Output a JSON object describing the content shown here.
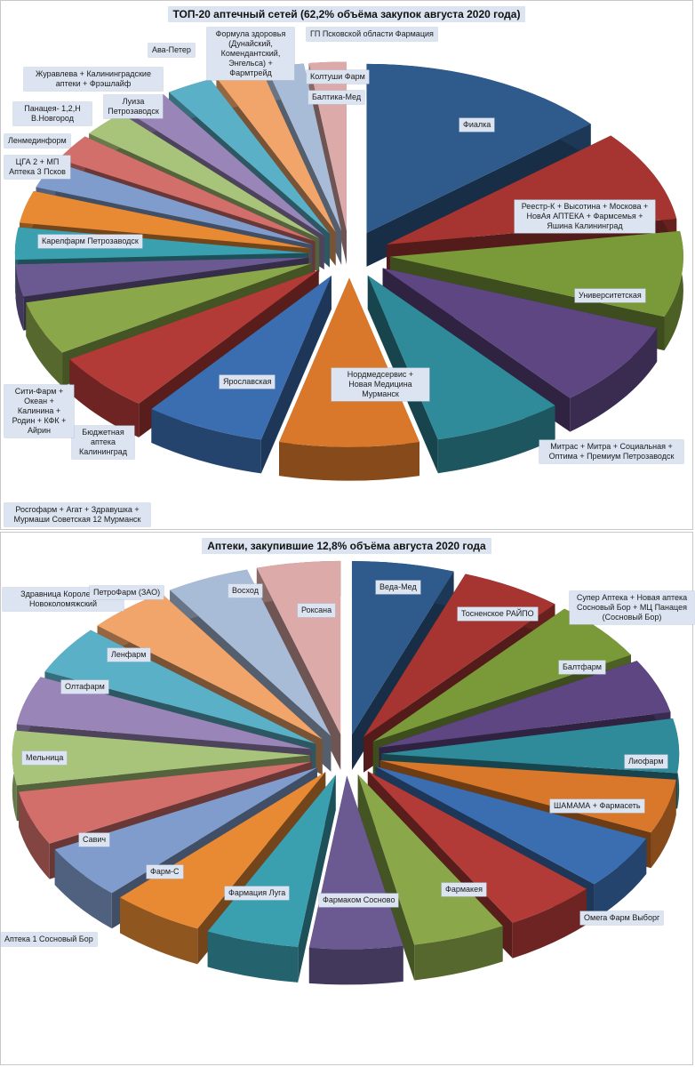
{
  "chart_data": [
    {
      "type": "pie",
      "title": "ТОП-20 аптечный сетей (62,2% объёма закупок августа 2020 года)",
      "slices": [
        {
          "label": "Фиалка",
          "value": 13.5,
          "color": "#2e5b8c"
        },
        {
          "label": "Реестр-К + Высотина + Москова + НовАя АПТЕКА + Фармсемья + Яшина Калининград",
          "value": 8.5,
          "color": "#a63532"
        },
        {
          "label": "Университетская",
          "value": 8.0,
          "color": "#7a9a3a"
        },
        {
          "label": "Митрас + Митра + Социальная + Оптима + Премиум Петрозаводск",
          "value": 8.0,
          "color": "#5e4682"
        },
        {
          "label": "Нордмедсервис + Новая Медицина Мурманск",
          "value": 7.0,
          "color": "#2f8a9a"
        },
        {
          "label": "Ярославская",
          "value": 7.5,
          "color": "#d9772a"
        },
        {
          "label": "Бюджетная аптека Калининград",
          "value": 6.5,
          "color": "#3b6eb0"
        },
        {
          "label": "Сити-Фарм + Океан + Калинина + Родин + КФК + Айрин",
          "value": 5.5,
          "color": "#b23a37"
        },
        {
          "label": "Росгофарм + Агат + Здравушка + Мурмаши Советская 12 Мурманск",
          "value": 5.0,
          "color": "#8aa84a"
        },
        {
          "label": "Карелфарм Петрозаводск",
          "value": 3.0,
          "color": "#6b5a92"
        },
        {
          "label": "ЦГА 2 + МП Аптека 3 Псков",
          "value": 3.0,
          "color": "#3aa0b0"
        },
        {
          "label": "Ленмединформ",
          "value": 3.0,
          "color": "#e88a33"
        },
        {
          "label": "Панацея- 1,2,Н В.Новгород",
          "value": 2.5,
          "color": "#7f9ccc"
        },
        {
          "label": "Луиза Петрозаводск",
          "value": 2.5,
          "color": "#d26f6b"
        },
        {
          "label": "Журавлева + Калининградские аптеки + Фрэшлайф",
          "value": 2.5,
          "color": "#a8c47a"
        },
        {
          "label": "Ава-Петер",
          "value": 2.5,
          "color": "#9a85b8"
        },
        {
          "label": "Формула здоровья (Дунайский, Комендантский, Энгельса) + Фармтрейд",
          "value": 2.5,
          "color": "#5ab0c6"
        },
        {
          "label": "ГП Псковской области Фармация",
          "value": 2.5,
          "color": "#f2a56a"
        },
        {
          "label": "Колтуши Фарм",
          "value": 2.0,
          "color": "#a8bcd8"
        },
        {
          "label": "Балтика-Мед",
          "value": 2.0,
          "color": "#dcaaa8"
        }
      ]
    },
    {
      "type": "pie",
      "title": "Аптеки, закупившие 12,8% объёма августа 2020 года",
      "slices": [
        {
          "label": "Веда-Мед",
          "value": 5.5,
          "color": "#2e5b8c"
        },
        {
          "label": "Тосненское РАЙПО",
          "value": 5.5,
          "color": "#a63532"
        },
        {
          "label": "Балтфарм",
          "value": 5.5,
          "color": "#7a9a3a"
        },
        {
          "label": "Супер Аптека + Новая аптека Сосновый Бор + МЦ Панацея (Сосновый Бор)",
          "value": 5.0,
          "color": "#5e4682"
        },
        {
          "label": "Лиофарм",
          "value": 5.0,
          "color": "#2f8a9a"
        },
        {
          "label": "ШАМАМА + Фармасеть",
          "value": 5.0,
          "color": "#d9772a"
        },
        {
          "label": "Омега Фарм Выборг",
          "value": 5.0,
          "color": "#3b6eb0"
        },
        {
          "label": "Фармакея",
          "value": 5.0,
          "color": "#b23a37"
        },
        {
          "label": "Фармаком Сосново",
          "value": 5.0,
          "color": "#8aa84a"
        },
        {
          "label": "Фармация Луга",
          "value": 5.0,
          "color": "#6b5a92"
        },
        {
          "label": "Фарм-С",
          "value": 5.0,
          "color": "#3aa0b0"
        },
        {
          "label": "Савич",
          "value": 5.0,
          "color": "#e88a33"
        },
        {
          "label": "Аптека 1 Сосновый Бор",
          "value": 5.0,
          "color": "#7f9ccc"
        },
        {
          "label": "Мельница",
          "value": 5.0,
          "color": "#d26f6b"
        },
        {
          "label": "Здравница Королева и Новоколомяжский",
          "value": 5.0,
          "color": "#a8c47a"
        },
        {
          "label": "Олтафарм",
          "value": 4.5,
          "color": "#9a85b8"
        },
        {
          "label": "Ленфарм",
          "value": 4.5,
          "color": "#5ab0c6"
        },
        {
          "label": "ПетроФарм (ЗАО)",
          "value": 4.5,
          "color": "#f2a56a"
        },
        {
          "label": "Восход",
          "value": 4.5,
          "color": "#a8bcd8"
        },
        {
          "label": "Роксана",
          "value": 4.5,
          "color": "#dcaaa8"
        }
      ]
    }
  ]
}
